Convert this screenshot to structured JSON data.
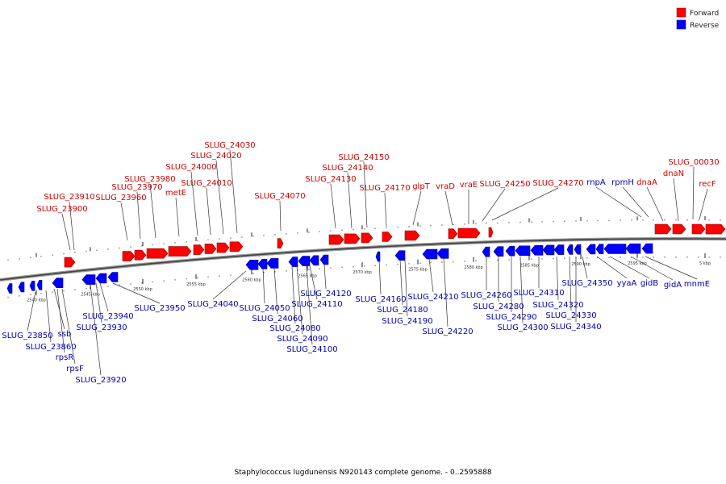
{
  "legend": {
    "forward": {
      "label": "Forward",
      "color": "#ff0000"
    },
    "reverse": {
      "label": "Reverse",
      "color": "#0000ff"
    }
  },
  "caption": "Staphylococcus lugdunensis N920143 complete genome. - 0..2595888",
  "colors": {
    "forward_text": "#cc0000",
    "reverse_text": "#0000aa",
    "leader": "#333333"
  },
  "ticks": [
    "2540 kbp",
    "2545 kbp",
    "2550 kbp",
    "2555 kbp",
    "2560 kbp",
    "2565 kbp",
    "2570 kbp",
    "2575 kbp",
    "2580 kbp",
    "2585 kbp",
    "2590 kbp",
    "2595 kbp",
    "5 kbp"
  ],
  "forward_labels": [
    "SLUG_23900",
    "SLUG_23910",
    "SLUG_23960",
    "SLUG_23970",
    "SLUG_23980",
    "metE",
    "SLUG_24000",
    "SLUG_24010",
    "SLUG_24020",
    "SLUG_24030",
    "SLUG_24070",
    "SLUG_24130",
    "SLUG_24140",
    "SLUG_24150",
    "SLUG_24170",
    "glpT",
    "vraD",
    "vraE",
    "SLUG_24250",
    "SLUG_24270",
    "dnaA",
    "dnaN",
    "SLUG_00030",
    "recF"
  ],
  "reverse_top_labels": [
    "rnpA",
    "rpmH"
  ],
  "reverse_labels": [
    "SLUG_23850",
    "SLUG_23860",
    "ssb",
    "rpsR",
    "rpsF",
    "SLUG_23920",
    "SLUG_23930",
    "SLUG_23940",
    "SLUG_23950",
    "SLUG_24040",
    "SLUG_24050",
    "SLUG_24060",
    "SLUG_24080",
    "SLUG_24090",
    "SLUG_24100",
    "SLUG_24110",
    "SLUG_24120",
    "SLUG_24160",
    "SLUG_24180",
    "SLUG_24190",
    "SLUG_24210",
    "SLUG_24220",
    "SLUG_24260",
    "SLUG_24280",
    "SLUG_24290",
    "SLUG_24300",
    "SLUG_24310",
    "SLUG_24320",
    "SLUG_24330",
    "SLUG_24340",
    "SLUG_24350",
    "yyaA",
    "gidB",
    "gidA",
    "mnmE"
  ]
}
